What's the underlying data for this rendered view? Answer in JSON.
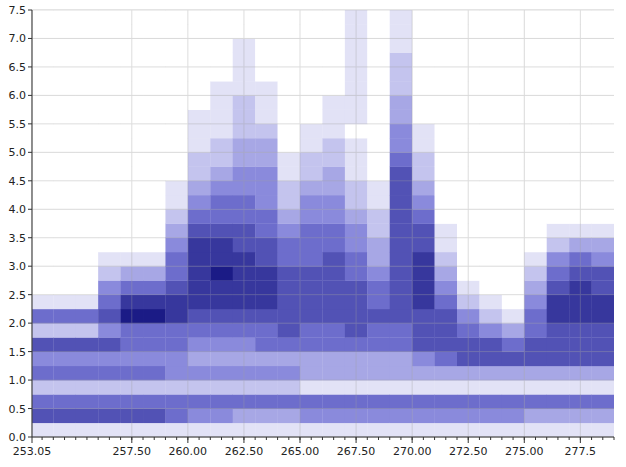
{
  "chart_data": {
    "type": "heatmap",
    "xlim": [
      253.05,
      279
    ],
    "ylim": [
      0,
      7.5
    ],
    "xticks": [
      253.05,
      {
        "value": 257.5,
        "label": "257.50"
      },
      {
        "value": 260,
        "label": "260.00"
      },
      {
        "value": 262.5,
        "label": "262.50"
      },
      {
        "value": 265,
        "label": "265.00"
      },
      {
        "value": 267.5,
        "label": "267.50"
      },
      {
        "value": 270,
        "label": "270.00"
      },
      {
        "value": 272.5,
        "label": "272.50"
      },
      {
        "value": 275,
        "label": "275.00"
      },
      277.5
    ],
    "yticks": [
      {
        "value": 0,
        "label": "0.0"
      },
      0.5,
      {
        "value": 1,
        "label": "1.0"
      },
      1.5,
      {
        "value": 2,
        "label": "2.0"
      },
      2.5,
      {
        "value": 3,
        "label": "3.0"
      },
      3.5,
      {
        "value": 4,
        "label": "4.0"
      },
      4.5,
      {
        "value": 5,
        "label": "5.0"
      },
      5.5,
      {
        "value": 6,
        "label": "6.0"
      },
      6.5,
      {
        "value": 7,
        "label": "7.0"
      },
      7.5
    ],
    "grid": true,
    "color": "#00006e",
    "zlim": [
      0,
      9
    ],
    "x_bins": [
      253.05,
      254,
      255,
      256,
      257,
      258,
      259,
      260,
      261,
      262,
      263,
      264,
      265,
      266,
      267,
      268,
      269,
      270,
      271,
      272,
      273,
      274,
      275,
      276,
      277,
      278,
      279
    ],
    "y_bins": [
      0,
      0.25,
      0.5,
      0.75,
      1,
      1.25,
      1.5,
      1.75,
      2,
      2.25,
      2.5,
      2.75,
      3,
      3.25,
      3.5,
      3.75,
      4,
      4.25,
      4.5,
      4.75,
      5,
      5.25,
      5.5,
      5.75,
      6,
      6.25,
      6.5,
      6.75,
      7,
      7.25,
      7.5
    ],
    "cells": [
      [
        1,
        6,
        5,
        2,
        5,
        4,
        6,
        2,
        5,
        1,
        0,
        0,
        0,
        0,
        0,
        0,
        0,
        0,
        0,
        0,
        0,
        0,
        0,
        0,
        0,
        0,
        0,
        0,
        0,
        0
      ],
      [
        1,
        6,
        5,
        2,
        5,
        4,
        6,
        2,
        5,
        1,
        0,
        0,
        0,
        0,
        0,
        0,
        0,
        0,
        0,
        0,
        0,
        0,
        0,
        0,
        0,
        0,
        0,
        0,
        0,
        0
      ],
      [
        1,
        6,
        5,
        2,
        5,
        4,
        6,
        2,
        5,
        1,
        0,
        0,
        0,
        0,
        0,
        0,
        0,
        0,
        0,
        0,
        0,
        0,
        0,
        0,
        0,
        0,
        0,
        0,
        0,
        0
      ],
      [
        1,
        6,
        5,
        2,
        5,
        4,
        6,
        4,
        6,
        5,
        4,
        2,
        1,
        0,
        0,
        0,
        0,
        0,
        0,
        0,
        0,
        0,
        0,
        0,
        0,
        0,
        0,
        0,
        0,
        0
      ],
      [
        1,
        6,
        5,
        2,
        5,
        4,
        5,
        5,
        8,
        7,
        5,
        3,
        1,
        0,
        0,
        0,
        0,
        0,
        0,
        0,
        0,
        0,
        0,
        0,
        0,
        0,
        0,
        0,
        0,
        0
      ],
      [
        1,
        6,
        5,
        2,
        5,
        4,
        5,
        5,
        8,
        7,
        5,
        3,
        1,
        0,
        0,
        0,
        0,
        0,
        0,
        0,
        0,
        0,
        0,
        0,
        0,
        0,
        0,
        0,
        0,
        0
      ],
      [
        1,
        5,
        5,
        2,
        4,
        4,
        5,
        5,
        7,
        7,
        6,
        5,
        5,
        4,
        3,
        2,
        1,
        1,
        0,
        0,
        0,
        0,
        0,
        0,
        0,
        0,
        0,
        0,
        0,
        0
      ],
      [
        1,
        4,
        5,
        2,
        4,
        3,
        4,
        5,
        6,
        7,
        7,
        7,
        7,
        7,
        6,
        5,
        4,
        3,
        2,
        2,
        1,
        1,
        1,
        0,
        0,
        0,
        0,
        0,
        0,
        0
      ],
      [
        1,
        4,
        5,
        2,
        4,
        3,
        4,
        5,
        6,
        7,
        7,
        8,
        7,
        7,
        6,
        5,
        5,
        4,
        3,
        2,
        2,
        1,
        1,
        1,
        1,
        0,
        0,
        0,
        0,
        0
      ],
      [
        1,
        3,
        5,
        2,
        4,
        3,
        4,
        5,
        6,
        7,
        7,
        7,
        7,
        6,
        6,
        5,
        5,
        4,
        4,
        3,
        3,
        2,
        2,
        2,
        1,
        1,
        1,
        1,
        0,
        0
      ],
      [
        1,
        3,
        5,
        2,
        4,
        3,
        5,
        5,
        6,
        7,
        7,
        7,
        6,
        6,
        5,
        5,
        4,
        4,
        4,
        3,
        3,
        2,
        1,
        1,
        1,
        0,
        0,
        0,
        0,
        0
      ],
      [
        1,
        3,
        5,
        2,
        4,
        3,
        5,
        6,
        6,
        6,
        6,
        6,
        5,
        5,
        4,
        3,
        2,
        2,
        1,
        1,
        0,
        0,
        0,
        0,
        0,
        0,
        0,
        0,
        0,
        0
      ],
      [
        1,
        4,
        5,
        1,
        3,
        3,
        5,
        5,
        6,
        6,
        6,
        6,
        5,
        5,
        5,
        4,
        4,
        3,
        2,
        2,
        1,
        1,
        0,
        0,
        0,
        0,
        0,
        0,
        0,
        0
      ],
      [
        1,
        4,
        5,
        1,
        3,
        3,
        5,
        5,
        6,
        6,
        6,
        6,
        6,
        5,
        5,
        4,
        4,
        3,
        3,
        2,
        2,
        1,
        1,
        1,
        0,
        0,
        0,
        0,
        0,
        0
      ],
      [
        1,
        4,
        5,
        1,
        3,
        3,
        5,
        6,
        6,
        6,
        6,
        5,
        5,
        4,
        4,
        3,
        2,
        2,
        1,
        1,
        1,
        0,
        1,
        1,
        1,
        1,
        1,
        1,
        1,
        1
      ],
      [
        1,
        4,
        5,
        1,
        3,
        3,
        5,
        5,
        6,
        5,
        5,
        4,
        3,
        3,
        2,
        2,
        1,
        1,
        0,
        0,
        0,
        0,
        0,
        0,
        0,
        0,
        0,
        0,
        0,
        0
      ],
      [
        1,
        4,
        5,
        1,
        3,
        3,
        5,
        5,
        6,
        6,
        6,
        6,
        6,
        6,
        6,
        6,
        6,
        6,
        6,
        5,
        4,
        4,
        3,
        3,
        2,
        2,
        2,
        1,
        1,
        1
      ],
      [
        1,
        4,
        5,
        1,
        3,
        4,
        6,
        6,
        6,
        7,
        7,
        7,
        7,
        6,
        6,
        5,
        4,
        3,
        2,
        2,
        1,
        1,
        0,
        0,
        0,
        0,
        0,
        0,
        0,
        0
      ],
      [
        1,
        4,
        5,
        1,
        3,
        5,
        6,
        6,
        6,
        5,
        4,
        3,
        2,
        1,
        1,
        0,
        0,
        0,
        0,
        0,
        0,
        0,
        0,
        0,
        0,
        0,
        0,
        0,
        0,
        0
      ],
      [
        1,
        4,
        5,
        1,
        3,
        6,
        6,
        5,
        4,
        2,
        1,
        0,
        0,
        0,
        0,
        0,
        0,
        0,
        0,
        0,
        0,
        0,
        0,
        0,
        0,
        0,
        0,
        0,
        0,
        0
      ],
      [
        1,
        4,
        5,
        1,
        3,
        6,
        6,
        4,
        2,
        1,
        0,
        0,
        0,
        0,
        0,
        0,
        0,
        0,
        0,
        0,
        0,
        0,
        0,
        0,
        0,
        0,
        0,
        0,
        0,
        0
      ],
      [
        1,
        4,
        5,
        1,
        3,
        6,
        5,
        3,
        1,
        0,
        0,
        0,
        0,
        0,
        0,
        0,
        0,
        0,
        0,
        0,
        0,
        0,
        0,
        0,
        0,
        0,
        0,
        0,
        0,
        0
      ],
      [
        1,
        3,
        5,
        1,
        3,
        6,
        6,
        5,
        5,
        4,
        3,
        2,
        1,
        0,
        0,
        0,
        0,
        0,
        0,
        0,
        0,
        0,
        0,
        0,
        0,
        0,
        0,
        0,
        0,
        0
      ],
      [
        1,
        3,
        5,
        1,
        3,
        6,
        6,
        6,
        7,
        7,
        6,
        5,
        4,
        2,
        1,
        0,
        0,
        0,
        0,
        0,
        0,
        0,
        0,
        0,
        0,
        0,
        0,
        0,
        0,
        0
      ],
      [
        1,
        3,
        5,
        1,
        3,
        6,
        6,
        6,
        7,
        7,
        7,
        6,
        5,
        3,
        1,
        0,
        0,
        0,
        0,
        0,
        0,
        0,
        0,
        0,
        0,
        0,
        0,
        0,
        0,
        0
      ],
      [
        1,
        3,
        5,
        1,
        3,
        6,
        6,
        6,
        7,
        7,
        6,
        6,
        4,
        3,
        1,
        0,
        0,
        0,
        0,
        0,
        0,
        0,
        0,
        0,
        0,
        0,
        0,
        0,
        0,
        0
      ]
    ]
  }
}
